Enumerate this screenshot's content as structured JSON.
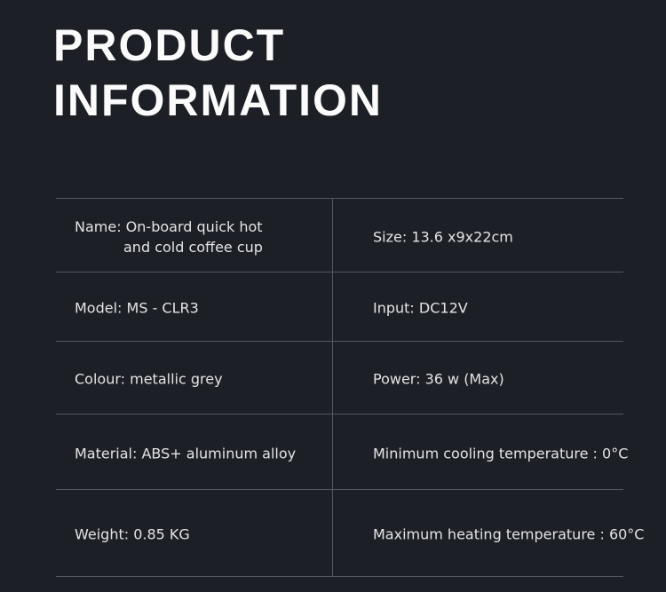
{
  "header": {
    "title_lines": [
      "PRODUCT",
      "INFORMATION"
    ]
  },
  "table": {
    "rows": [
      [
        [
          "Name: On-board quick hot",
          "and cold coffee cup"
        ],
        [
          "Size: 13.6 x9x22cm"
        ]
      ],
      [
        [
          "Model: MS - CLR3"
        ],
        [
          "Input: DC12V"
        ]
      ],
      [
        [
          "Colour: metallic grey"
        ],
        [
          "Power: 36 w (Max)"
        ]
      ],
      [
        [
          "Material: ABS+ aluminum alloy"
        ],
        [
          "Minimum cooling temperature : 0°C"
        ]
      ],
      [
        [
          "Weight: 0.85 KG"
        ],
        [
          "Maximum heating temperature : 60°C"
        ]
      ]
    ]
  }
}
